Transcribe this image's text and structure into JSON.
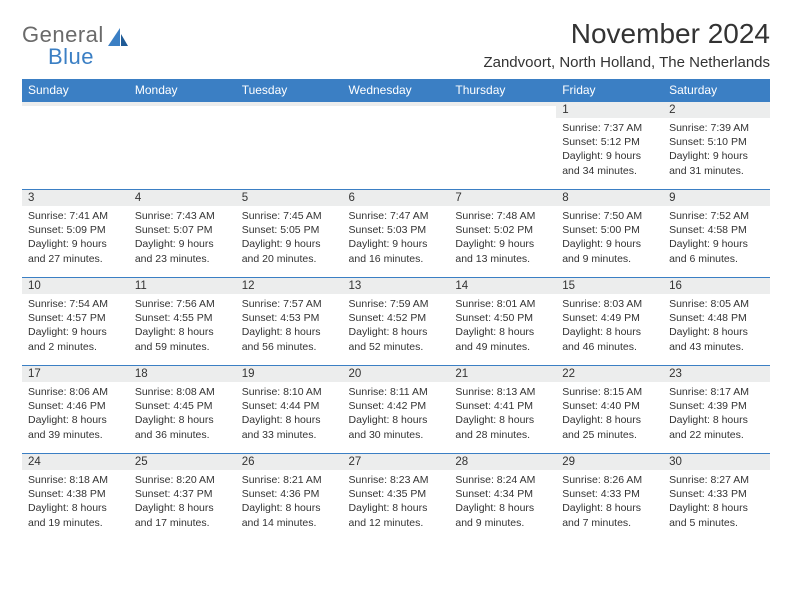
{
  "brand": {
    "part1": "General",
    "part2": "Blue",
    "color1": "#6a6a6a",
    "color2": "#3b7fc4"
  },
  "title": "November 2024",
  "location": "Zandvoort, North Holland, The Netherlands",
  "colors": {
    "header_bg": "#3b7fc4",
    "header_fg": "#ffffff",
    "daynum_bg": "#eceded",
    "text": "#333333",
    "border": "#3b7fc4"
  },
  "weekdays": [
    "Sunday",
    "Monday",
    "Tuesday",
    "Wednesday",
    "Thursday",
    "Friday",
    "Saturday"
  ],
  "weeks": [
    [
      {
        "n": "",
        "lines": [
          "",
          "",
          "",
          ""
        ]
      },
      {
        "n": "",
        "lines": [
          "",
          "",
          "",
          ""
        ]
      },
      {
        "n": "",
        "lines": [
          "",
          "",
          "",
          ""
        ]
      },
      {
        "n": "",
        "lines": [
          "",
          "",
          "",
          ""
        ]
      },
      {
        "n": "",
        "lines": [
          "",
          "",
          "",
          ""
        ]
      },
      {
        "n": "1",
        "lines": [
          "Sunrise: 7:37 AM",
          "Sunset: 5:12 PM",
          "Daylight: 9 hours",
          "and 34 minutes."
        ]
      },
      {
        "n": "2",
        "lines": [
          "Sunrise: 7:39 AM",
          "Sunset: 5:10 PM",
          "Daylight: 9 hours",
          "and 31 minutes."
        ]
      }
    ],
    [
      {
        "n": "3",
        "lines": [
          "Sunrise: 7:41 AM",
          "Sunset: 5:09 PM",
          "Daylight: 9 hours",
          "and 27 minutes."
        ]
      },
      {
        "n": "4",
        "lines": [
          "Sunrise: 7:43 AM",
          "Sunset: 5:07 PM",
          "Daylight: 9 hours",
          "and 23 minutes."
        ]
      },
      {
        "n": "5",
        "lines": [
          "Sunrise: 7:45 AM",
          "Sunset: 5:05 PM",
          "Daylight: 9 hours",
          "and 20 minutes."
        ]
      },
      {
        "n": "6",
        "lines": [
          "Sunrise: 7:47 AM",
          "Sunset: 5:03 PM",
          "Daylight: 9 hours",
          "and 16 minutes."
        ]
      },
      {
        "n": "7",
        "lines": [
          "Sunrise: 7:48 AM",
          "Sunset: 5:02 PM",
          "Daylight: 9 hours",
          "and 13 minutes."
        ]
      },
      {
        "n": "8",
        "lines": [
          "Sunrise: 7:50 AM",
          "Sunset: 5:00 PM",
          "Daylight: 9 hours",
          "and 9 minutes."
        ]
      },
      {
        "n": "9",
        "lines": [
          "Sunrise: 7:52 AM",
          "Sunset: 4:58 PM",
          "Daylight: 9 hours",
          "and 6 minutes."
        ]
      }
    ],
    [
      {
        "n": "10",
        "lines": [
          "Sunrise: 7:54 AM",
          "Sunset: 4:57 PM",
          "Daylight: 9 hours",
          "and 2 minutes."
        ]
      },
      {
        "n": "11",
        "lines": [
          "Sunrise: 7:56 AM",
          "Sunset: 4:55 PM",
          "Daylight: 8 hours",
          "and 59 minutes."
        ]
      },
      {
        "n": "12",
        "lines": [
          "Sunrise: 7:57 AM",
          "Sunset: 4:53 PM",
          "Daylight: 8 hours",
          "and 56 minutes."
        ]
      },
      {
        "n": "13",
        "lines": [
          "Sunrise: 7:59 AM",
          "Sunset: 4:52 PM",
          "Daylight: 8 hours",
          "and 52 minutes."
        ]
      },
      {
        "n": "14",
        "lines": [
          "Sunrise: 8:01 AM",
          "Sunset: 4:50 PM",
          "Daylight: 8 hours",
          "and 49 minutes."
        ]
      },
      {
        "n": "15",
        "lines": [
          "Sunrise: 8:03 AM",
          "Sunset: 4:49 PM",
          "Daylight: 8 hours",
          "and 46 minutes."
        ]
      },
      {
        "n": "16",
        "lines": [
          "Sunrise: 8:05 AM",
          "Sunset: 4:48 PM",
          "Daylight: 8 hours",
          "and 43 minutes."
        ]
      }
    ],
    [
      {
        "n": "17",
        "lines": [
          "Sunrise: 8:06 AM",
          "Sunset: 4:46 PM",
          "Daylight: 8 hours",
          "and 39 minutes."
        ]
      },
      {
        "n": "18",
        "lines": [
          "Sunrise: 8:08 AM",
          "Sunset: 4:45 PM",
          "Daylight: 8 hours",
          "and 36 minutes."
        ]
      },
      {
        "n": "19",
        "lines": [
          "Sunrise: 8:10 AM",
          "Sunset: 4:44 PM",
          "Daylight: 8 hours",
          "and 33 minutes."
        ]
      },
      {
        "n": "20",
        "lines": [
          "Sunrise: 8:11 AM",
          "Sunset: 4:42 PM",
          "Daylight: 8 hours",
          "and 30 minutes."
        ]
      },
      {
        "n": "21",
        "lines": [
          "Sunrise: 8:13 AM",
          "Sunset: 4:41 PM",
          "Daylight: 8 hours",
          "and 28 minutes."
        ]
      },
      {
        "n": "22",
        "lines": [
          "Sunrise: 8:15 AM",
          "Sunset: 4:40 PM",
          "Daylight: 8 hours",
          "and 25 minutes."
        ]
      },
      {
        "n": "23",
        "lines": [
          "Sunrise: 8:17 AM",
          "Sunset: 4:39 PM",
          "Daylight: 8 hours",
          "and 22 minutes."
        ]
      }
    ],
    [
      {
        "n": "24",
        "lines": [
          "Sunrise: 8:18 AM",
          "Sunset: 4:38 PM",
          "Daylight: 8 hours",
          "and 19 minutes."
        ]
      },
      {
        "n": "25",
        "lines": [
          "Sunrise: 8:20 AM",
          "Sunset: 4:37 PM",
          "Daylight: 8 hours",
          "and 17 minutes."
        ]
      },
      {
        "n": "26",
        "lines": [
          "Sunrise: 8:21 AM",
          "Sunset: 4:36 PM",
          "Daylight: 8 hours",
          "and 14 minutes."
        ]
      },
      {
        "n": "27",
        "lines": [
          "Sunrise: 8:23 AM",
          "Sunset: 4:35 PM",
          "Daylight: 8 hours",
          "and 12 minutes."
        ]
      },
      {
        "n": "28",
        "lines": [
          "Sunrise: 8:24 AM",
          "Sunset: 4:34 PM",
          "Daylight: 8 hours",
          "and 9 minutes."
        ]
      },
      {
        "n": "29",
        "lines": [
          "Sunrise: 8:26 AM",
          "Sunset: 4:33 PM",
          "Daylight: 8 hours",
          "and 7 minutes."
        ]
      },
      {
        "n": "30",
        "lines": [
          "Sunrise: 8:27 AM",
          "Sunset: 4:33 PM",
          "Daylight: 8 hours",
          "and 5 minutes."
        ]
      }
    ]
  ]
}
